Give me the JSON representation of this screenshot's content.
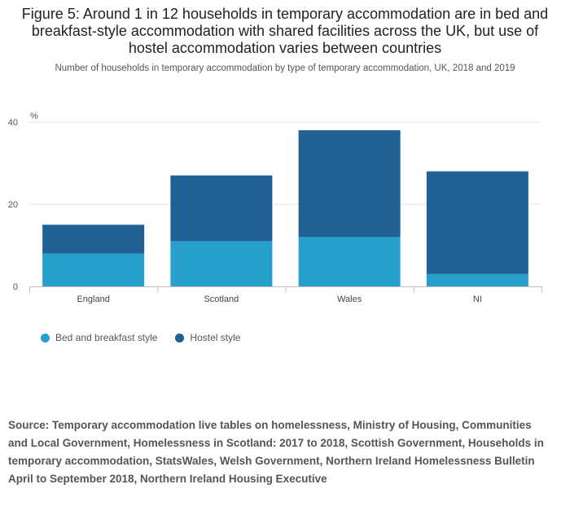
{
  "chart_data": {
    "type": "bar",
    "stacked": true,
    "title": "Figure 5: Around 1 in 12 households in temporary accommodation are in bed and breakfast-style accommodation with shared facilities across the UK, but use of hostel accommodation varies between countries",
    "subtitle": "Number of households in temporary accommodation by type of temporary accommodation, UK, 2018 and 2019",
    "ylabel": "%",
    "ylim": [
      0,
      40
    ],
    "yticks": [
      0,
      20,
      40
    ],
    "categories": [
      "England",
      "Scotland",
      "Wales",
      "NI"
    ],
    "series": [
      {
        "name": "Bed and breakfast style",
        "color": "#27a0cc",
        "values": [
          8,
          11,
          12,
          3
        ]
      },
      {
        "name": "Hostel style",
        "color": "#206095",
        "values": [
          7,
          16,
          26,
          25
        ]
      }
    ],
    "legend_position": "bottom-left",
    "grid": true
  },
  "source": "Source: Temporary accommodation live tables on homelessness, Ministry of Housing, Communities and Local Government, Homelessness in Scotland: 2017 to 2018, Scottish Government, Households in temporary accommodation, StatsWales, Welsh Government, Northern Ireland Homelessness Bulletin April to September 2018, Northern Ireland Housing Executive"
}
